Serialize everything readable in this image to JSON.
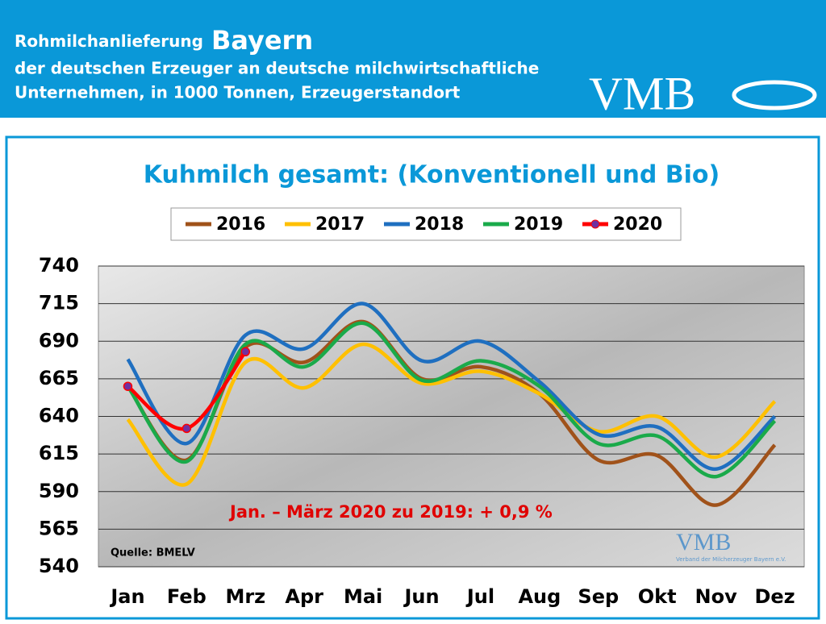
{
  "header": {
    "line1": "Rohmilchanlieferung",
    "line1_big": "Bayern",
    "line2": "der deutschen Erzeuger an deutsche milchwirtschaftliche",
    "line3": "Unternehmen, in 1000 Tonnen, Erzeugerstandort",
    "logo": "VMB"
  },
  "chart_data": {
    "type": "line",
    "title": "Kuhmilch gesamt: (Konventionell und Bio)",
    "annotation": "Jan. – März  2020 zu 2019:  + 0,9 %",
    "source": "Quelle: BMELV",
    "watermark": "VMB",
    "watermark_sub": "Verband der Milcherzeuger Bayern e.V.",
    "categories": [
      "Jan",
      "Feb",
      "Mrz",
      "Apr",
      "Mai",
      "Jun",
      "Jul",
      "Aug",
      "Sep",
      "Okt",
      "Nov",
      "Dez"
    ],
    "series": [
      {
        "name": "2016",
        "color": "#a0521a",
        "values": [
          660,
          611,
          686,
          676,
          703,
          665,
          673,
          655,
          611,
          614,
          581,
          621
        ]
      },
      {
        "name": "2017",
        "color": "#ffc000",
        "values": [
          638,
          595,
          676,
          659,
          688,
          662,
          670,
          655,
          630,
          640,
          613,
          650
        ]
      },
      {
        "name": "2018",
        "color": "#1f6fc0",
        "values": [
          678,
          622,
          694,
          685,
          715,
          677,
          690,
          663,
          628,
          633,
          605,
          640
        ]
      },
      {
        "name": "2019",
        "color": "#1aaa4a",
        "values": [
          660,
          610,
          688,
          673,
          702,
          664,
          677,
          660,
          622,
          627,
          600,
          637
        ]
      },
      {
        "name": "2020",
        "color": "#ff0000",
        "marker_color": "#7030a0",
        "values": [
          660,
          632,
          683,
          null,
          null,
          null,
          null,
          null,
          null,
          null,
          null,
          null
        ]
      }
    ],
    "ylim": [
      540,
      740
    ],
    "yticks": [
      540,
      565,
      590,
      615,
      640,
      665,
      690,
      715,
      740
    ],
    "grid": true
  }
}
